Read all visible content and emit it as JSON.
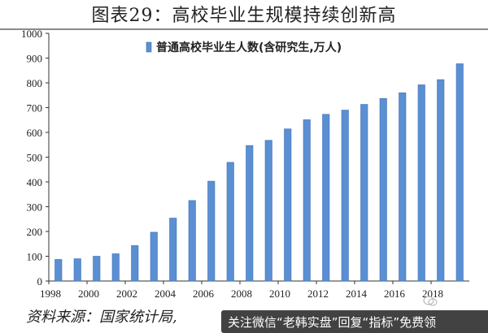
{
  "header": {
    "title": "图表29：高校毕业生规模持续创新高"
  },
  "footer": {
    "source": "资料来源：国家统计局,",
    "overlay": "关注微信“老韩实盘”回复“指标”免费领"
  },
  "colors": {
    "bar": "#5b8fd4",
    "bar_edge": "#3d6fb3",
    "axis": "#333333",
    "title_rule": "#8a8a8a"
  },
  "chart_data": {
    "type": "bar",
    "categories": [
      "1998",
      "1999",
      "2000",
      "2001",
      "2002",
      "2003",
      "2004",
      "2005",
      "2006",
      "2007",
      "2008",
      "2009",
      "2010",
      "2011",
      "2012",
      "2013",
      "2014",
      "2015",
      "2016",
      "2017",
      "2018",
      "2019"
    ],
    "series": [
      {
        "name": "普通高校毕业生人数(含研究生,万人)",
        "values": [
          87,
          90,
          100,
          110,
          143,
          197,
          254,
          325,
          403,
          479,
          547,
          568,
          614,
          651,
          673,
          690,
          713,
          737,
          760,
          792,
          813,
          877
        ]
      }
    ],
    "x_tick_labels": [
      "1998",
      "2000",
      "2002",
      "2004",
      "2006",
      "2008",
      "2010",
      "2012",
      "2014",
      "2016",
      "2018"
    ],
    "y_ticks": [
      0,
      100,
      200,
      300,
      400,
      500,
      600,
      700,
      800,
      900,
      1000
    ],
    "ylim": [
      0,
      1000
    ],
    "xlabel": "",
    "ylabel": "",
    "legend_position": "top",
    "grid": false
  }
}
